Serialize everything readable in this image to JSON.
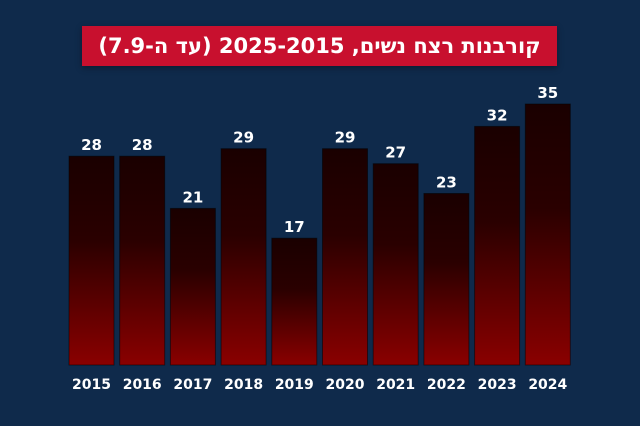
{
  "title": "קורבנות רצח נשים, 2025-2015 (עד ה-7.9)",
  "colors": {
    "background": "#0f2a4b",
    "title_background": "#c8102e",
    "bar_top": "#1a0000",
    "bar_bottom": "#8a0000",
    "text": "#ffffff"
  },
  "chart_data": {
    "type": "bar",
    "title": "קורבנות רצח נשים, 2025-2015 (עד ה-7.9)",
    "categories": [
      "2015",
      "2016",
      "2017",
      "2018",
      "2019",
      "2020",
      "2021",
      "2022",
      "2023",
      "2024"
    ],
    "values": [
      28,
      28,
      21,
      29,
      17,
      29,
      27,
      23,
      32,
      35
    ],
    "xlabel": "",
    "ylabel": "",
    "ylim": [
      0,
      35
    ],
    "grid": false,
    "legend": "none",
    "data_labels": true
  }
}
